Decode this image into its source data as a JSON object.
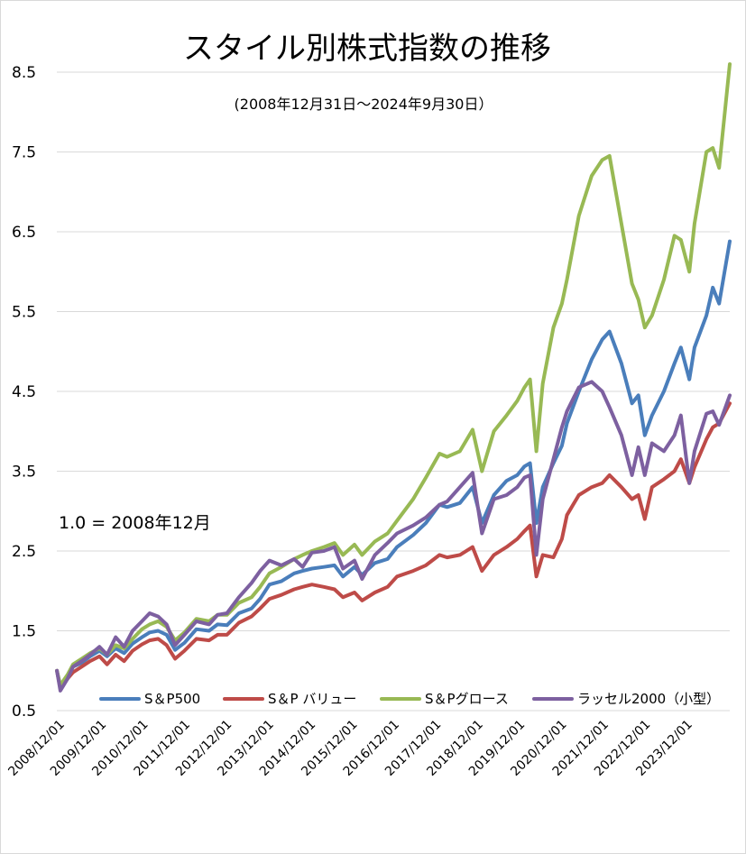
{
  "chart_data": {
    "type": "line",
    "title": "スタイル別株式指数の推移",
    "subtitle": "(2008年12月31日～2024年9月30日）",
    "annotation": "1.0 = 2008年12月",
    "xlabel": "",
    "ylabel": "",
    "ylim": [
      0.5,
      8.5
    ],
    "yticks": [
      0.5,
      1.5,
      2.5,
      3.5,
      4.5,
      5.5,
      6.5,
      7.5,
      8.5
    ],
    "ytick_labels": [
      "0.5",
      "1.5",
      "2.5",
      "3.5",
      "4.5",
      "5.5",
      "6.5",
      "7.5",
      "8.5"
    ],
    "xlim": [
      2008.917,
      2024.75
    ],
    "xticks": [
      "2008/12/01",
      "2009/12/01",
      "2010/12/01",
      "2011/12/01",
      "2012/12/01",
      "2013/12/01",
      "2014/12/01",
      "2015/12/01",
      "2016/12/01",
      "2017/12/01",
      "2018/12/01",
      "2019/12/01",
      "2020/12/01",
      "2021/12/01",
      "2022/12/01",
      "2023/12/01"
    ],
    "grid": true,
    "legend_position": "bottom",
    "series": [
      {
        "name": "S＆P500",
        "color": "#4a7ebb",
        "x": [
          2008.92,
          2009.0,
          2009.17,
          2009.3,
          2009.5,
          2009.7,
          2009.92,
          2010.1,
          2010.3,
          2010.5,
          2010.7,
          2010.92,
          2011.1,
          2011.3,
          2011.5,
          2011.7,
          2011.92,
          2012.2,
          2012.5,
          2012.7,
          2012.92,
          2013.2,
          2013.5,
          2013.7,
          2013.92,
          2014.2,
          2014.5,
          2014.7,
          2014.92,
          2015.2,
          2015.45,
          2015.65,
          2015.92,
          2016.1,
          2016.4,
          2016.7,
          2016.92,
          2017.3,
          2017.6,
          2017.92,
          2018.1,
          2018.4,
          2018.7,
          2018.92,
          2019.2,
          2019.5,
          2019.75,
          2019.92,
          2020.05,
          2020.2,
          2020.35,
          2020.6,
          2020.8,
          2020.92,
          2021.2,
          2021.5,
          2021.75,
          2021.92,
          2022.2,
          2022.45,
          2022.6,
          2022.75,
          2022.92,
          2023.2,
          2023.45,
          2023.6,
          2023.8,
          2023.92,
          2024.2,
          2024.35,
          2024.5,
          2024.75
        ],
        "values": [
          1.0,
          0.8,
          0.92,
          1.05,
          1.1,
          1.18,
          1.25,
          1.18,
          1.28,
          1.22,
          1.34,
          1.42,
          1.48,
          1.5,
          1.45,
          1.26,
          1.35,
          1.52,
          1.5,
          1.58,
          1.57,
          1.72,
          1.78,
          1.9,
          2.08,
          2.12,
          2.22,
          2.25,
          2.28,
          2.3,
          2.32,
          2.18,
          2.3,
          2.2,
          2.35,
          2.4,
          2.55,
          2.7,
          2.85,
          3.08,
          3.05,
          3.1,
          3.3,
          2.85,
          3.2,
          3.38,
          3.45,
          3.56,
          3.6,
          2.85,
          3.3,
          3.6,
          3.82,
          4.1,
          4.5,
          4.9,
          5.15,
          5.25,
          4.85,
          4.35,
          4.45,
          3.95,
          4.2,
          4.5,
          4.85,
          5.05,
          4.65,
          5.05,
          5.45,
          5.8,
          5.6,
          6.38
        ]
      },
      {
        "name": "S＆P バリュー",
        "color": "#be4b48",
        "x": [
          2008.92,
          2009.0,
          2009.17,
          2009.3,
          2009.5,
          2009.7,
          2009.92,
          2010.1,
          2010.3,
          2010.5,
          2010.7,
          2010.92,
          2011.1,
          2011.3,
          2011.5,
          2011.7,
          2011.92,
          2012.2,
          2012.5,
          2012.7,
          2012.92,
          2013.2,
          2013.5,
          2013.7,
          2013.92,
          2014.2,
          2014.5,
          2014.7,
          2014.92,
          2015.2,
          2015.45,
          2015.65,
          2015.92,
          2016.1,
          2016.4,
          2016.7,
          2016.92,
          2017.3,
          2017.6,
          2017.92,
          2018.1,
          2018.4,
          2018.7,
          2018.92,
          2019.2,
          2019.5,
          2019.75,
          2019.92,
          2020.05,
          2020.2,
          2020.35,
          2020.6,
          2020.8,
          2020.92,
          2021.2,
          2021.5,
          2021.75,
          2021.92,
          2022.2,
          2022.45,
          2022.6,
          2022.75,
          2022.92,
          2023.2,
          2023.45,
          2023.6,
          2023.8,
          2023.92,
          2024.2,
          2024.35,
          2024.5,
          2024.75
        ],
        "values": [
          1.0,
          0.78,
          0.9,
          0.98,
          1.05,
          1.12,
          1.18,
          1.08,
          1.2,
          1.12,
          1.25,
          1.33,
          1.38,
          1.4,
          1.32,
          1.15,
          1.25,
          1.4,
          1.38,
          1.45,
          1.45,
          1.6,
          1.68,
          1.78,
          1.9,
          1.95,
          2.02,
          2.05,
          2.08,
          2.05,
          2.02,
          1.92,
          1.98,
          1.88,
          1.98,
          2.05,
          2.18,
          2.25,
          2.32,
          2.45,
          2.42,
          2.45,
          2.55,
          2.25,
          2.45,
          2.55,
          2.65,
          2.75,
          2.82,
          2.18,
          2.45,
          2.42,
          2.65,
          2.95,
          3.2,
          3.3,
          3.35,
          3.45,
          3.3,
          3.15,
          3.2,
          2.9,
          3.3,
          3.4,
          3.5,
          3.65,
          3.35,
          3.55,
          3.9,
          4.05,
          4.1,
          4.35
        ]
      },
      {
        "name": "S＆Pグロース",
        "color": "#98b954",
        "x": [
          2008.92,
          2009.0,
          2009.17,
          2009.3,
          2009.5,
          2009.7,
          2009.92,
          2010.1,
          2010.3,
          2010.5,
          2010.7,
          2010.92,
          2011.1,
          2011.3,
          2011.5,
          2011.7,
          2011.92,
          2012.2,
          2012.5,
          2012.7,
          2012.92,
          2013.2,
          2013.5,
          2013.7,
          2013.92,
          2014.2,
          2014.5,
          2014.7,
          2014.92,
          2015.2,
          2015.45,
          2015.65,
          2015.92,
          2016.1,
          2016.4,
          2016.7,
          2016.92,
          2017.3,
          2017.6,
          2017.92,
          2018.1,
          2018.4,
          2018.7,
          2018.92,
          2019.2,
          2019.5,
          2019.75,
          2019.92,
          2020.05,
          2020.2,
          2020.35,
          2020.6,
          2020.8,
          2020.92,
          2021.2,
          2021.5,
          2021.75,
          2021.92,
          2022.2,
          2022.45,
          2022.6,
          2022.75,
          2022.92,
          2023.2,
          2023.45,
          2023.6,
          2023.8,
          2023.92,
          2024.2,
          2024.35,
          2024.5,
          2024.75
        ],
        "values": [
          1.0,
          0.82,
          0.95,
          1.08,
          1.15,
          1.22,
          1.28,
          1.2,
          1.32,
          1.28,
          1.4,
          1.52,
          1.58,
          1.62,
          1.55,
          1.38,
          1.48,
          1.65,
          1.62,
          1.7,
          1.7,
          1.85,
          1.92,
          2.05,
          2.22,
          2.3,
          2.4,
          2.45,
          2.5,
          2.55,
          2.6,
          2.45,
          2.58,
          2.45,
          2.62,
          2.72,
          2.88,
          3.15,
          3.42,
          3.72,
          3.68,
          3.75,
          4.02,
          3.5,
          4.0,
          4.2,
          4.38,
          4.55,
          4.65,
          3.75,
          4.6,
          5.3,
          5.6,
          5.9,
          6.7,
          7.2,
          7.4,
          7.45,
          6.6,
          5.85,
          5.65,
          5.3,
          5.45,
          5.9,
          6.45,
          6.4,
          6.0,
          6.6,
          7.5,
          7.55,
          7.3,
          8.6
        ]
      },
      {
        "name": "ラッセル2000（小型）",
        "color": "#7d60a0",
        "x": [
          2008.92,
          2009.0,
          2009.17,
          2009.3,
          2009.5,
          2009.7,
          2009.92,
          2010.1,
          2010.3,
          2010.5,
          2010.7,
          2010.92,
          2011.1,
          2011.3,
          2011.5,
          2011.7,
          2011.92,
          2012.2,
          2012.5,
          2012.7,
          2012.92,
          2013.2,
          2013.5,
          2013.7,
          2013.92,
          2014.2,
          2014.5,
          2014.7,
          2014.92,
          2015.2,
          2015.45,
          2015.65,
          2015.92,
          2016.1,
          2016.4,
          2016.7,
          2016.92,
          2017.3,
          2017.6,
          2017.92,
          2018.1,
          2018.4,
          2018.7,
          2018.92,
          2019.2,
          2019.5,
          2019.75,
          2019.92,
          2020.05,
          2020.2,
          2020.35,
          2020.6,
          2020.8,
          2020.92,
          2021.2,
          2021.5,
          2021.75,
          2021.92,
          2022.2,
          2022.45,
          2022.6,
          2022.75,
          2022.92,
          2023.2,
          2023.45,
          2023.6,
          2023.8,
          2023.92,
          2024.2,
          2024.35,
          2024.5,
          2024.75
        ],
        "values": [
          1.0,
          0.75,
          0.9,
          1.05,
          1.12,
          1.2,
          1.3,
          1.2,
          1.42,
          1.3,
          1.5,
          1.62,
          1.72,
          1.68,
          1.58,
          1.32,
          1.45,
          1.62,
          1.58,
          1.7,
          1.72,
          1.92,
          2.1,
          2.25,
          2.38,
          2.32,
          2.4,
          2.3,
          2.48,
          2.5,
          2.55,
          2.28,
          2.38,
          2.15,
          2.45,
          2.6,
          2.72,
          2.82,
          2.92,
          3.08,
          3.12,
          3.3,
          3.48,
          2.72,
          3.15,
          3.2,
          3.3,
          3.42,
          3.45,
          2.45,
          3.15,
          3.65,
          4.05,
          4.25,
          4.55,
          4.62,
          4.5,
          4.3,
          3.95,
          3.45,
          3.8,
          3.45,
          3.85,
          3.75,
          3.95,
          4.2,
          3.35,
          3.75,
          4.22,
          4.25,
          4.08,
          4.45
        ]
      }
    ]
  }
}
